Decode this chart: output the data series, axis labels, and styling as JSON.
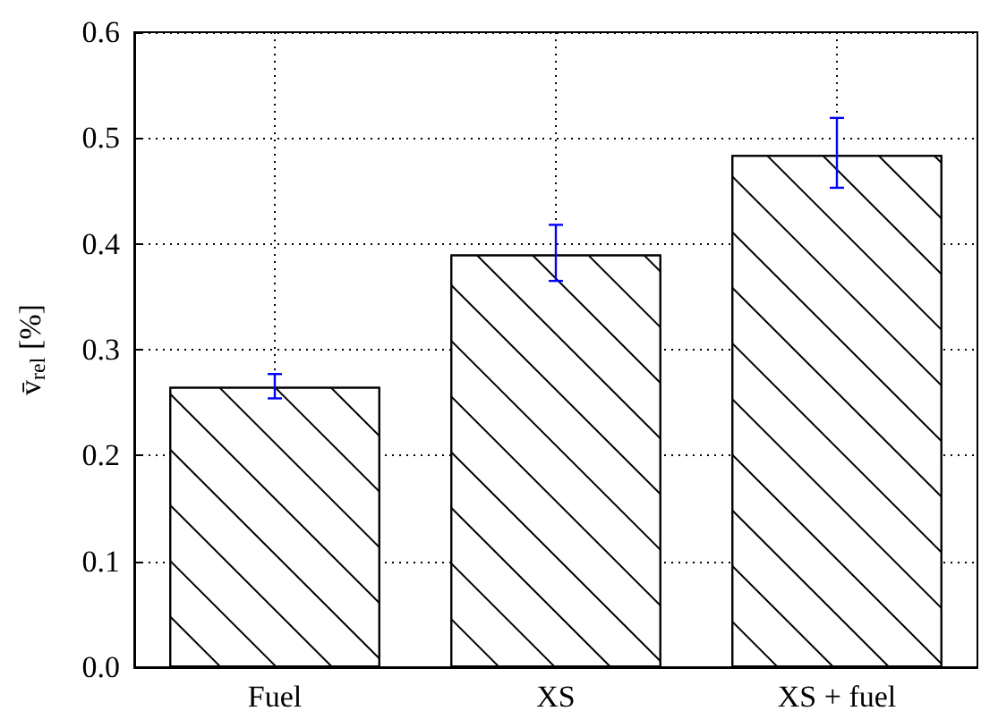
{
  "chart_data": {
    "type": "bar",
    "ylabel": "v̄$_{rel}$ [%]",
    "categories": [
      "Fuel",
      "XS",
      "XS + fuel"
    ],
    "values": [
      0.265,
      0.39,
      0.484
    ],
    "errors": [
      [
        0.254,
        0.277
      ],
      [
        0.365,
        0.418
      ],
      [
        0.453,
        0.519
      ]
    ],
    "color": "#ffffff",
    "ylim": [
      0,
      0.6
    ],
    "yticks": [
      {
        "value": 0,
        "label": "0.0"
      },
      0.1,
      0.2,
      0.3,
      0.4,
      0.5,
      0.6
    ],
    "grid": true
  }
}
